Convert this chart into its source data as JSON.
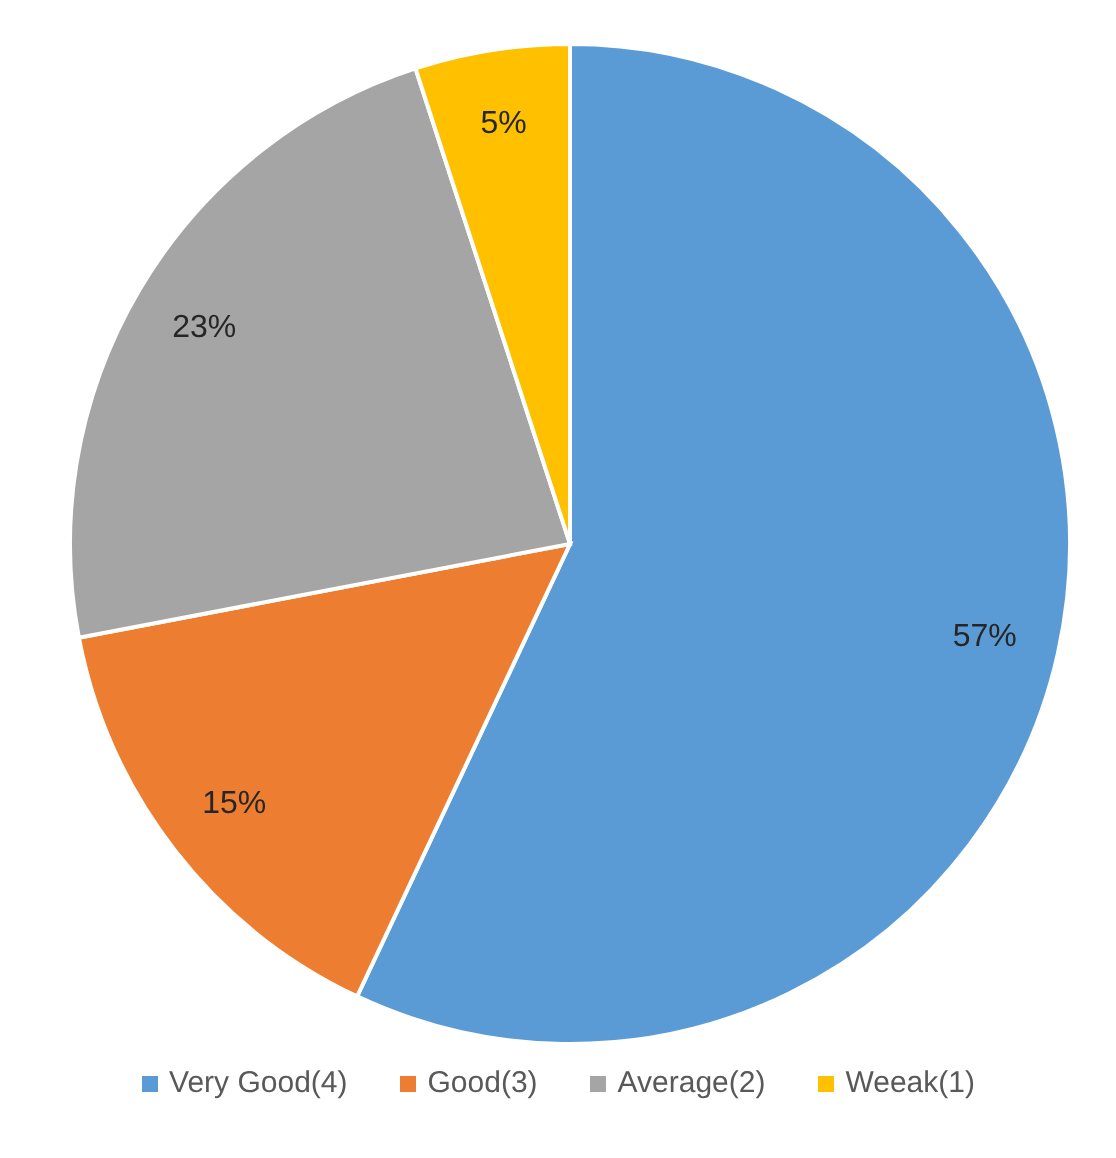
{
  "chart_data": {
    "type": "pie",
    "categories": [
      "Very Good(4)",
      "Good(3)",
      "Average(2)",
      "Weeak(1)"
    ],
    "values": [
      57,
      15,
      23,
      5
    ],
    "colors": [
      "#5b9bd5",
      "#ed7d31",
      "#a5a5a5",
      "#ffc000"
    ],
    "value_labels": [
      "57%",
      "15%",
      "23%",
      "5%"
    ],
    "legend": "bottom"
  }
}
